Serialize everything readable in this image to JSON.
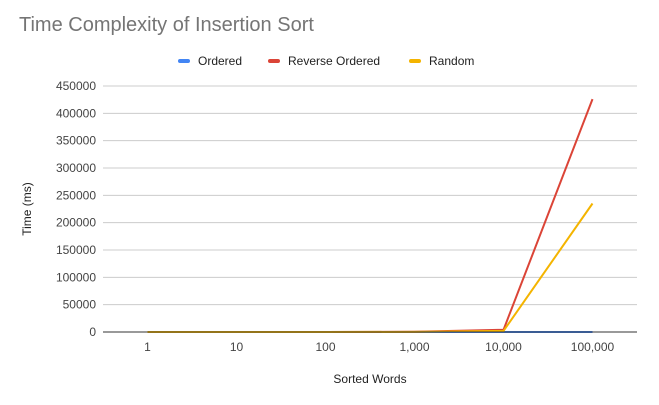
{
  "chart_data": {
    "type": "line",
    "title": "Time Complexity of Insertion Sort",
    "xlabel": "Sorted Words",
    "ylabel": "Time (ms)",
    "categories": [
      "1",
      "10",
      "100",
      "1,000",
      "10,000",
      "100,000"
    ],
    "y_ticks": [
      "0",
      "50000",
      "100000",
      "150000",
      "200000",
      "250000",
      "300000",
      "350000",
      "400000",
      "450000"
    ],
    "ylim": [
      0,
      450000
    ],
    "grid": true,
    "legend_position": "top",
    "series": [
      {
        "name": "Ordered",
        "color": "#4285f4",
        "values": [
          0,
          0,
          0,
          0,
          0,
          0
        ]
      },
      {
        "name": "Reverse Ordered",
        "color": "#db4437",
        "values": [
          0,
          0,
          0,
          300,
          4000,
          426000
        ]
      },
      {
        "name": "Random",
        "color": "#f4b400",
        "values": [
          0,
          0,
          0,
          200,
          2000,
          235000
        ]
      }
    ]
  }
}
